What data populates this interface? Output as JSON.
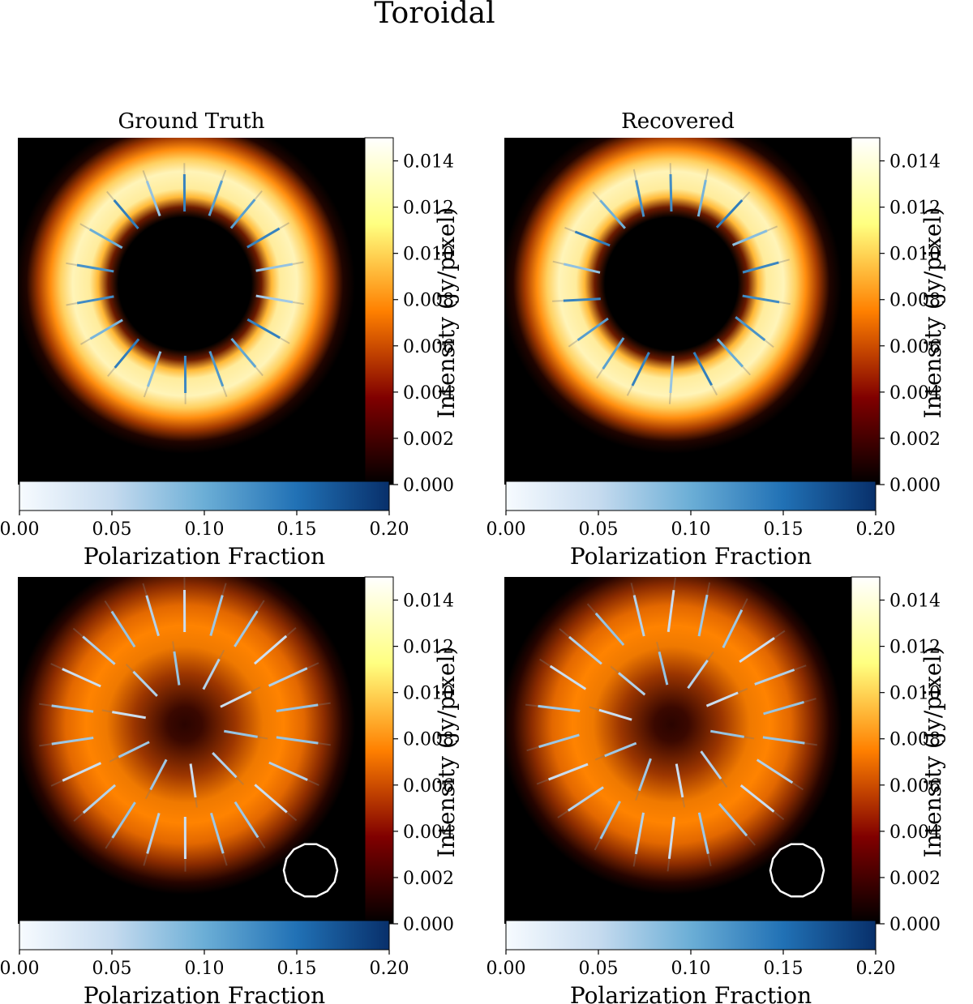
{
  "figure": {
    "title": "Toroidal"
  },
  "colors": {
    "background": "#000000",
    "ring_outline": "#ffffff",
    "intensity_colormap": "afmhot",
    "polarization_colormap": "Blues"
  },
  "chart_data": [
    {
      "type": "heatmap",
      "title": "Ground Truth",
      "panel": "top-left",
      "image": "bright ring (full intensity) with radial/tangential polarization ticks",
      "intensity_colorbar": {
        "label": "Intensity (Jy/pixel)",
        "range": [
          0.0,
          0.015
        ],
        "ticks": [
          "0.000",
          "0.002",
          "0.004",
          "0.006",
          "0.008",
          "0.010",
          "0.012",
          "0.014"
        ]
      },
      "polarization_colorbar": {
        "label": "Polarization Fraction",
        "range": [
          0.0,
          0.2
        ],
        "ticks": [
          "0.00",
          "0.05",
          "0.10",
          "0.15",
          "0.20"
        ]
      },
      "polarization_ticks": 18,
      "beam_shown": false
    },
    {
      "type": "heatmap",
      "title": "Recovered",
      "panel": "top-right",
      "image": "bright ring (full intensity) with polarization ticks",
      "intensity_colorbar": {
        "label": "Intensity (Jy/pixel)",
        "range": [
          0.0,
          0.015
        ],
        "ticks": [
          "0.000",
          "0.002",
          "0.004",
          "0.006",
          "0.008",
          "0.010",
          "0.012",
          "0.014"
        ]
      },
      "polarization_colorbar": {
        "label": "Polarization Fraction",
        "range": [
          0.0,
          0.2
        ],
        "ticks": [
          "0.00",
          "0.05",
          "0.10",
          "0.15",
          "0.20"
        ]
      },
      "polarization_ticks": 18,
      "beam_shown": false
    },
    {
      "type": "heatmap",
      "title": "",
      "panel": "bottom-left",
      "image": "blurred ring (peak ~0.008 Jy/pixel) with polarization ticks",
      "intensity_colorbar": {
        "label": "Intensity (Jy/pixel)",
        "range": [
          0.0,
          0.015
        ],
        "ticks": [
          "0.000",
          "0.002",
          "0.004",
          "0.006",
          "0.008",
          "0.010",
          "0.012",
          "0.014"
        ]
      },
      "polarization_colorbar": {
        "label": "Polarization Fraction",
        "range": [
          0.0,
          0.2
        ],
        "ticks": [
          "0.00",
          "0.05",
          "0.10",
          "0.15",
          "0.20"
        ]
      },
      "polarization_ticks": 32,
      "beam_shown": true
    },
    {
      "type": "heatmap",
      "title": "",
      "panel": "bottom-right",
      "image": "blurred ring (peak ~0.008 Jy/pixel) with polarization ticks",
      "intensity_colorbar": {
        "label": "Intensity (Jy/pixel)",
        "range": [
          0.0,
          0.015
        ],
        "ticks": [
          "0.000",
          "0.002",
          "0.004",
          "0.006",
          "0.008",
          "0.010",
          "0.012",
          "0.014"
        ]
      },
      "polarization_colorbar": {
        "label": "Polarization Fraction",
        "range": [
          0.0,
          0.2
        ],
        "ticks": [
          "0.00",
          "0.05",
          "0.10",
          "0.15",
          "0.20"
        ]
      },
      "polarization_ticks": 32,
      "beam_shown": true
    }
  ]
}
